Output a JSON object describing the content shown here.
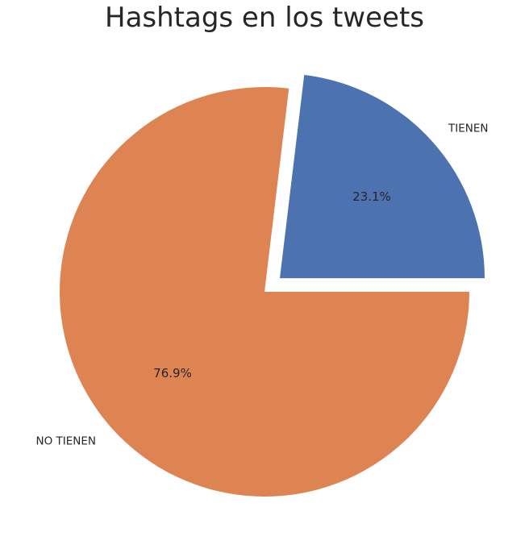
{
  "chart_data": {
    "type": "pie",
    "title": "Hashtags en los tweets",
    "slices": [
      {
        "label": "TIENEN",
        "value": 23.1,
        "pct_label": "23.1%",
        "color": "#4c72b0",
        "exploded": true
      },
      {
        "label": "NO TIENEN",
        "value": 76.9,
        "pct_label": "76.9%",
        "color": "#dd8452",
        "exploded": false
      }
    ],
    "start_angle_deg": 0,
    "direction": "counterclockwise",
    "legend": "none"
  }
}
